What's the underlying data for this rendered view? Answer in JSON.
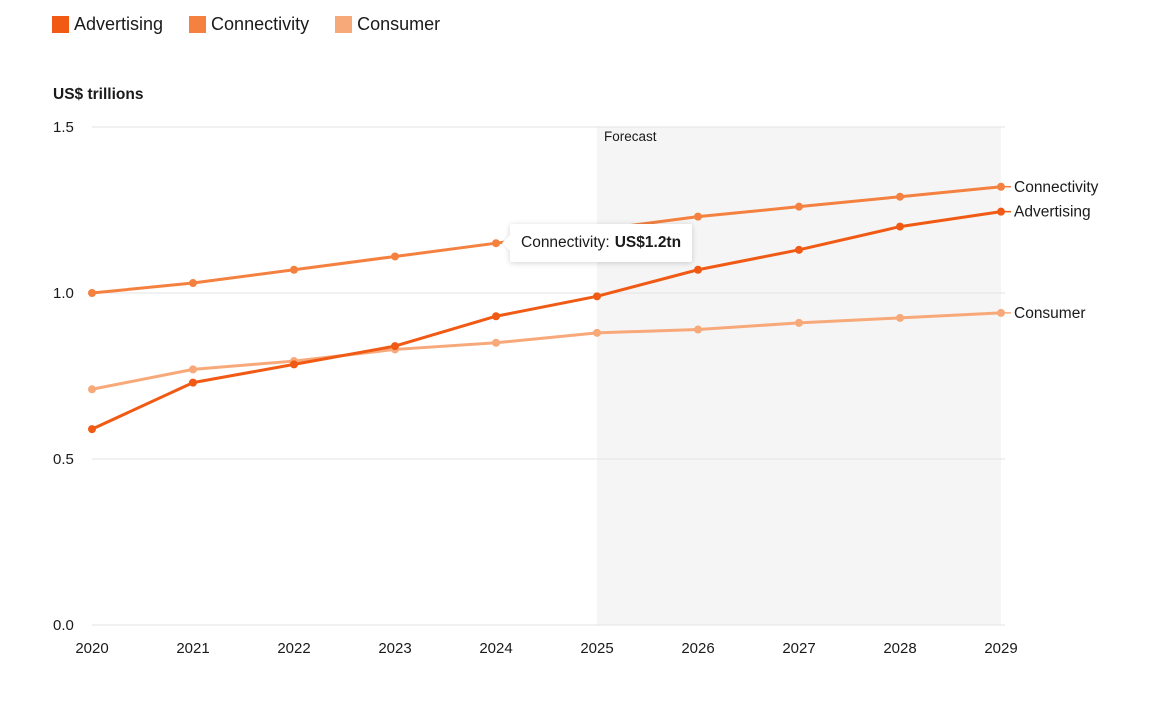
{
  "legend": [
    {
      "label": "Advertising",
      "color": "#F05A14"
    },
    {
      "label": "Connectivity",
      "color": "#F4813F"
    },
    {
      "label": "Consumer",
      "color": "#F8A97A"
    }
  ],
  "unit_label": "US$ trillions",
  "forecast_label": "Forecast",
  "tooltip": {
    "series": "Connectivity:",
    "value": "US$1.2tn"
  },
  "chart_data": {
    "type": "line",
    "title": "",
    "xlabel": "",
    "ylabel": "US$ trillions",
    "x": [
      "2020",
      "2021",
      "2022",
      "2023",
      "2024",
      "2025",
      "2026",
      "2027",
      "2028",
      "2029"
    ],
    "ylim": [
      0,
      1.5
    ],
    "yticks": [
      "0.0",
      "0.5",
      "1.0",
      "1.5"
    ],
    "yticks_values": [
      0,
      0.5,
      1.0,
      1.5
    ],
    "grid": true,
    "legend_position": "top-left",
    "forecast_start": "2025",
    "forecast_end": "2029",
    "series": [
      {
        "name": "Advertising",
        "color": "#F05A14",
        "values": [
          0.59,
          0.73,
          0.785,
          0.84,
          0.93,
          0.99,
          1.07,
          1.13,
          1.2,
          1.245
        ]
      },
      {
        "name": "Connectivity",
        "color": "#F4813F",
        "values": [
          1.0,
          1.03,
          1.07,
          1.11,
          1.15,
          1.19,
          1.23,
          1.26,
          1.29,
          1.32
        ]
      },
      {
        "name": "Consumer",
        "color": "#F8A97A",
        "values": [
          0.71,
          0.77,
          0.795,
          0.83,
          0.85,
          0.88,
          0.89,
          0.91,
          0.925,
          0.94
        ]
      }
    ],
    "end_labels": [
      "Connectivity",
      "Advertising",
      "Consumer"
    ],
    "annotations": [
      {
        "text": "Connectivity: US$1.2tn",
        "x": "2024",
        "series": "Connectivity"
      }
    ]
  }
}
